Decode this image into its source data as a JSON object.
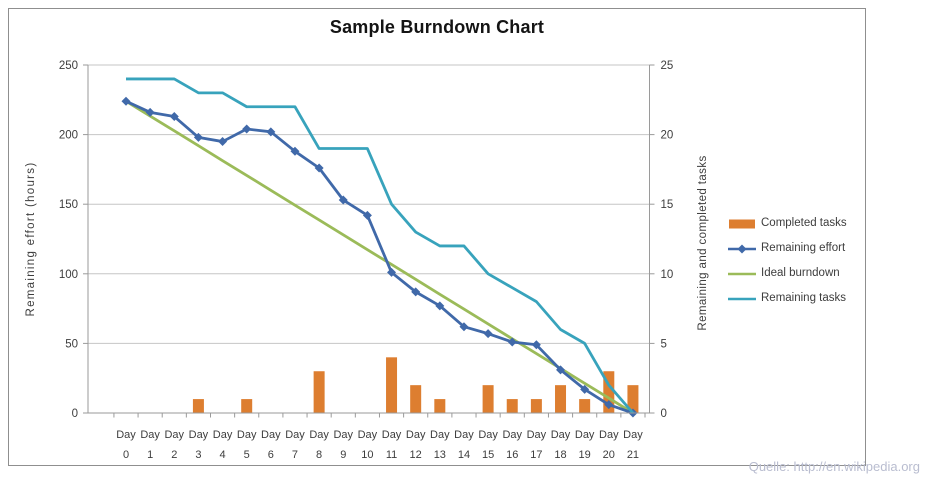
{
  "title": "Sample Burndown Chart",
  "source_note": "Quelle: http://en.wikipedia.org",
  "colors": {
    "gridline": "#c6c6c6",
    "axis_line": "#9a9a9a",
    "text": "#3d3d3d",
    "title_text": "#141414",
    "source_text": "#b9bdd0",
    "completed_tasks": "#dd7e30",
    "remaining_effort": "#4069a9",
    "ideal_burndown": "#9bbb59",
    "remaining_tasks": "#38a3bc"
  },
  "chart_data": {
    "type": "combo",
    "title": "Sample Burndown Chart",
    "grid": true,
    "legend_position": "right",
    "categories_prefix": "Day",
    "categories": [
      0,
      1,
      2,
      3,
      4,
      5,
      6,
      7,
      8,
      9,
      10,
      11,
      12,
      13,
      14,
      15,
      16,
      17,
      18,
      19,
      20,
      21
    ],
    "left_axis": {
      "label": "Remaining effort (hours)",
      "min": 0,
      "max": 250,
      "step": 50,
      "ticks": [
        250,
        200,
        150,
        100,
        50,
        0
      ]
    },
    "right_axis": {
      "label": "Remaining and completed tasks",
      "min": 0,
      "max": 25,
      "step": 5,
      "ticks": [
        25,
        20,
        15,
        10,
        5,
        0
      ]
    },
    "series": [
      {
        "name": "Completed tasks",
        "type": "bar",
        "axis": "right",
        "color": "#dd7e30",
        "values": [
          0,
          0,
          0,
          1,
          0,
          1,
          0,
          0,
          3,
          0,
          0,
          4,
          2,
          1,
          0,
          2,
          1,
          1,
          2,
          1,
          3,
          2
        ]
      },
      {
        "name": "Remaining effort",
        "type": "line",
        "marker": "diamond",
        "axis": "left",
        "color": "#4069a9",
        "values": [
          224,
          216,
          213,
          198,
          195,
          204,
          202,
          188,
          176,
          153,
          142,
          101,
          87,
          77,
          62,
          57,
          51,
          49,
          31,
          17,
          6,
          0
        ]
      },
      {
        "name": "Ideal burndown",
        "type": "line",
        "marker": "none",
        "axis": "left",
        "color": "#9bbb59",
        "values": [
          224,
          213.3,
          202.7,
          192,
          181.3,
          170.7,
          160,
          149.3,
          138.7,
          128,
          117.3,
          106.7,
          96,
          85.3,
          74.7,
          64,
          53.3,
          42.7,
          32,
          21.3,
          10.7,
          0
        ]
      },
      {
        "name": "Remaining tasks",
        "type": "line",
        "marker": "none",
        "axis": "right",
        "color": "#38a3bc",
        "values": [
          24,
          24,
          24,
          23,
          23,
          22,
          22,
          22,
          19,
          19,
          19,
          15,
          13,
          12,
          12,
          10,
          9,
          8,
          6,
          5,
          2,
          0
        ]
      }
    ]
  }
}
